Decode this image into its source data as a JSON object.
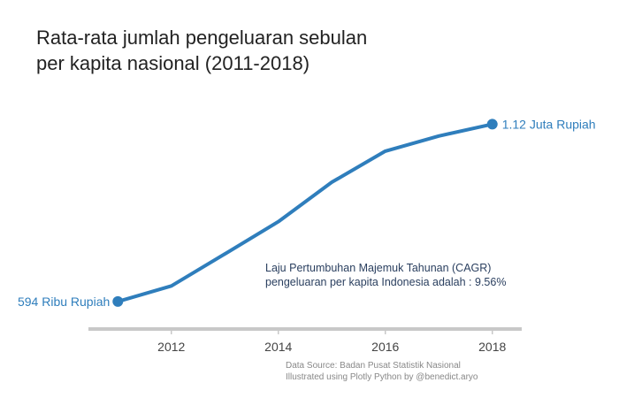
{
  "chart_data": {
    "type": "line",
    "title_lines": [
      "Rata-rata jumlah pengeluaran sebulan",
      "per kapita nasional (2011-2018)"
    ],
    "xlabel": "",
    "ylabel": "",
    "x": [
      2011,
      2012,
      2013,
      2014,
      2015,
      2016,
      2017,
      2018
    ],
    "series": [
      {
        "values": [
          594000,
          640000,
          735000,
          831000,
          948000,
          1040000,
          1085000,
          1120000
        ]
      }
    ],
    "x_ticks": [
      2012,
      2014,
      2016,
      2018
    ],
    "xlim": [
      2010.45,
      2018.55
    ],
    "ylim": [
      570000,
      1150000
    ],
    "y_axis_visible": false,
    "grid": false,
    "legend": "none",
    "line_color": "#2f7ebc",
    "axis_color": "#c8c8c8",
    "start_label": "594 Ribu Rupiah",
    "end_label": "1.12 Juta Rupiah",
    "annotation_lines": [
      "Laju Pertumbuhan Majemuk Tahunan (CAGR)",
      "pengeluaran per kapita Indonesia adalah : 9.56%"
    ],
    "source_lines": [
      "Data Source: Badan Pusat Statistik Nasional",
      "Illustrated using Plotly Python by @benedict.aryo"
    ]
  }
}
